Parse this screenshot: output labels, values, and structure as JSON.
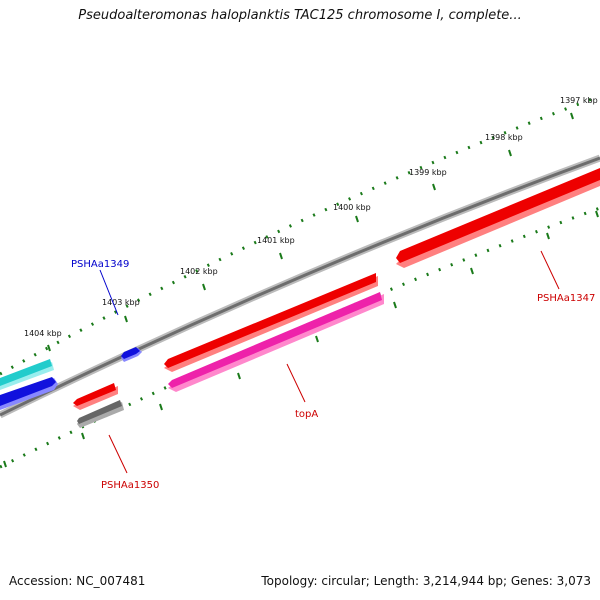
{
  "title": "Pseudoalteromonas haloplanktis TAC125 chromosome I, complete...",
  "footer": {
    "accession": "Accession: NC_007481",
    "summary": "Topology: circular; Length: 3,214,944 bp; Genes: 3,073"
  },
  "kbp_ticks": [
    "1397 kbp",
    "1398 kbp",
    "1399 kbp",
    "1400 kbp",
    "1401 kbp",
    "1402 kbp",
    "1403 kbp",
    "1404 kbp"
  ],
  "gene_labels": {
    "pshaa1349": "PSHAa1349",
    "pshaa1347": "PSHAa1347",
    "topa": "topA",
    "pshaa1350": "PSHAa1350"
  },
  "colors": {
    "backbone": "#8a8a8a",
    "ruler": "#1a7a1a",
    "gene_red": "#ee0000",
    "gene_magenta": "#ee22aa",
    "gene_blue": "#1111dd",
    "gene_cyan": "#22cccc",
    "gene_gray": "#666666",
    "label_red": "#cc0000",
    "label_blue": "#0000cc"
  }
}
